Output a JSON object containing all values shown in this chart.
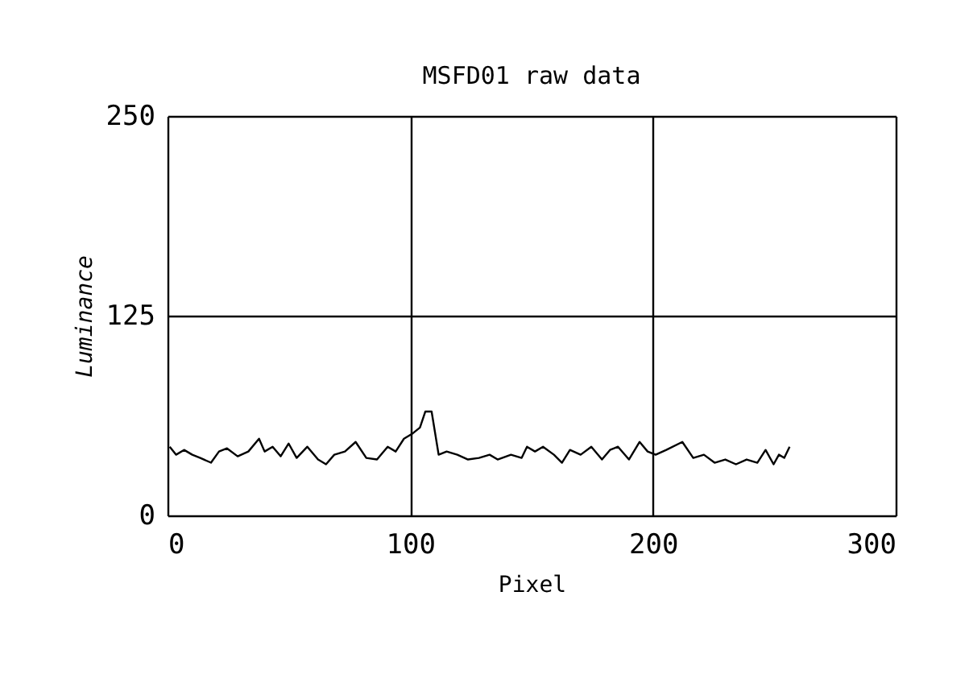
{
  "chart_data": {
    "type": "line",
    "title": "MSFD01  raw data",
    "xlabel": "Pixel",
    "ylabel": "Luminance",
    "xlim": [
      0,
      300
    ],
    "xticks": [
      0,
      100,
      200,
      300
    ],
    "ylim": [
      0,
      250
    ],
    "yticks": [
      0,
      125,
      250
    ],
    "grid": true,
    "line_style": "solid",
    "marker": "none",
    "series": [
      {
        "color": "#000000",
        "x": [
          0.9,
          3.5,
          6.8,
          10.2,
          13.5,
          17.9,
          21.2,
          24.5,
          28.9,
          33.3,
          37.7,
          40,
          43.3,
          46.6,
          49.9,
          53.2,
          57.6,
          62,
          65.3,
          68.7,
          73.1,
          77.5,
          81.9,
          86.3,
          90.7,
          94,
          97.4,
          100.7,
          104,
          106.2,
          108.8,
          111.7,
          115,
          119.4,
          123.8,
          128.3,
          132.7,
          136,
          141.5,
          145.9,
          148.1,
          151.4,
          154.7,
          159.2,
          162.5,
          165.8,
          170.2,
          174.6,
          179,
          182.3,
          185.6,
          190.1,
          194.5,
          197.8,
          201.1,
          205.5,
          212.1,
          216.6,
          221,
          225.4,
          229.8,
          234.2,
          238.6,
          243,
          246.4,
          249.7,
          251.9,
          254.1,
          256.3
        ],
        "values": [
          43,
          38,
          41,
          38,
          36,
          33,
          40,
          42,
          37,
          40,
          48,
          40,
          43,
          37,
          45,
          36,
          43,
          35,
          32,
          38,
          40,
          46,
          36,
          35,
          43,
          40,
          48,
          51,
          55,
          65,
          65,
          38,
          40,
          38,
          35,
          36,
          38,
          35,
          38,
          36,
          43,
          40,
          43,
          38,
          33,
          41,
          38,
          43,
          35,
          41,
          43,
          35,
          46,
          40,
          38,
          41,
          46,
          36,
          38,
          33,
          35,
          32,
          35,
          33,
          41,
          32,
          38,
          36,
          43
        ]
      }
    ]
  }
}
